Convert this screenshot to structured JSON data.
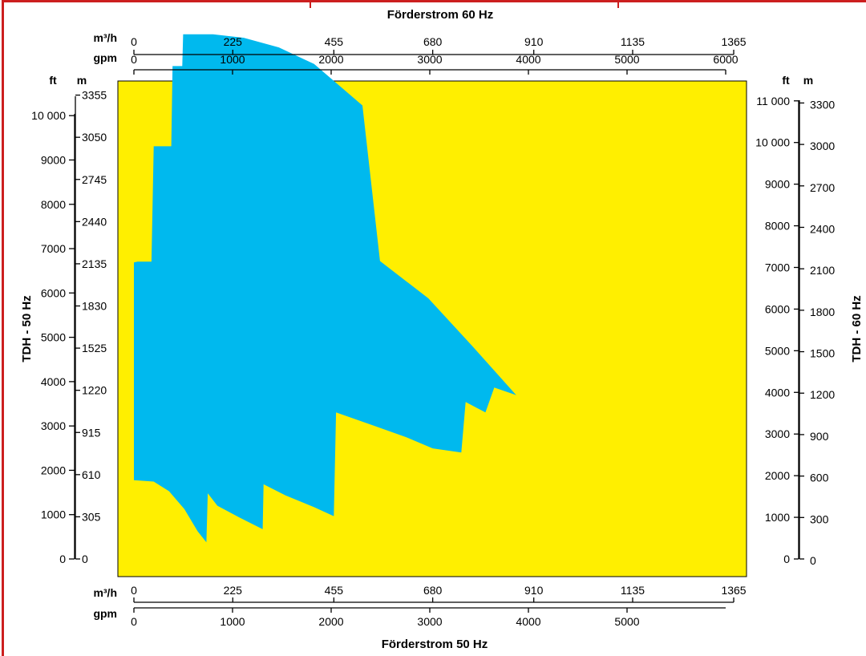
{
  "colors": {
    "plot_background": "#ffef00",
    "envelope": "#00b9ee",
    "frame_accent": "#cc1f1f"
  },
  "chart_data": {
    "type": "area",
    "title": "",
    "top_axis": {
      "title": "Förderstrom 60 Hz",
      "scale1": {
        "unit": "m³/h",
        "ticks": [
          "0",
          "225",
          "455",
          "680",
          "910",
          "1135",
          "1365"
        ]
      },
      "scale2": {
        "unit": "gpm",
        "ticks": [
          "0",
          "1000",
          "2000",
          "3000",
          "4000",
          "5000",
          "6000"
        ]
      }
    },
    "bottom_axis": {
      "title": "Förderstrom 50 Hz",
      "scale1": {
        "unit": "m³/h",
        "ticks": [
          "0",
          "225",
          "455",
          "680",
          "910",
          "1135",
          "1365"
        ]
      },
      "scale2": {
        "unit": "gpm",
        "ticks": [
          "0",
          "1000",
          "2000",
          "3000",
          "4000",
          "5000"
        ]
      }
    },
    "left_axis": {
      "title": "TDH - 50 Hz",
      "ft": {
        "unit": "ft",
        "ticks": [
          "0",
          "1000",
          "2000",
          "3000",
          "4000",
          "5000",
          "6000",
          "7000",
          "8000",
          "9000",
          "10 000"
        ]
      },
      "m": {
        "unit": "m",
        "ticks": [
          "0",
          "305",
          "610",
          "915",
          "1220",
          "1525",
          "1830",
          "2135",
          "2440",
          "2745",
          "3050",
          "3355"
        ]
      }
    },
    "right_axis": {
      "title": "TDH - 60 Hz",
      "ft": {
        "unit": "ft",
        "ticks": [
          "0",
          "1000",
          "2000",
          "3000",
          "4000",
          "5000",
          "6000",
          "7000",
          "8000",
          "9000",
          "10 000",
          "11 000"
        ]
      },
      "m": {
        "unit": "m",
        "ticks": [
          "0",
          "300",
          "600",
          "900",
          "1200",
          "1500",
          "1800",
          "2100",
          "2400",
          "2700",
          "3000",
          "3300"
        ]
      }
    },
    "xlim_50hz_m3h": [
      0,
      1365
    ],
    "ylim_50hz_m": [
      0,
      3355
    ],
    "series": [
      {
        "points_m3h_m": [
          [
            0,
            2145
          ],
          [
            8,
            2150
          ],
          [
            40,
            2150
          ],
          [
            45,
            2985
          ],
          [
            85,
            2985
          ],
          [
            88,
            3565
          ],
          [
            110,
            3565
          ],
          [
            112,
            3795
          ],
          [
            180,
            3795
          ],
          [
            250,
            3770
          ],
          [
            330,
            3700
          ],
          [
            410,
            3580
          ],
          [
            520,
            3280
          ],
          [
            560,
            2155
          ],
          [
            670,
            1885
          ],
          [
            770,
            1540
          ],
          [
            870,
            1185
          ],
          [
            820,
            1240
          ],
          [
            800,
            1060
          ],
          [
            755,
            1135
          ],
          [
            745,
            770
          ],
          [
            680,
            800
          ],
          [
            620,
            880
          ],
          [
            545,
            965
          ],
          [
            460,
            1060
          ],
          [
            455,
            310
          ],
          [
            410,
            375
          ],
          [
            345,
            460
          ],
          [
            295,
            540
          ],
          [
            293,
            215
          ],
          [
            240,
            300
          ],
          [
            190,
            385
          ],
          [
            168,
            475
          ],
          [
            165,
            120
          ],
          [
            145,
            200
          ],
          [
            115,
            360
          ],
          [
            80,
            490
          ],
          [
            45,
            560
          ],
          [
            0,
            570
          ]
        ]
      }
    ]
  }
}
